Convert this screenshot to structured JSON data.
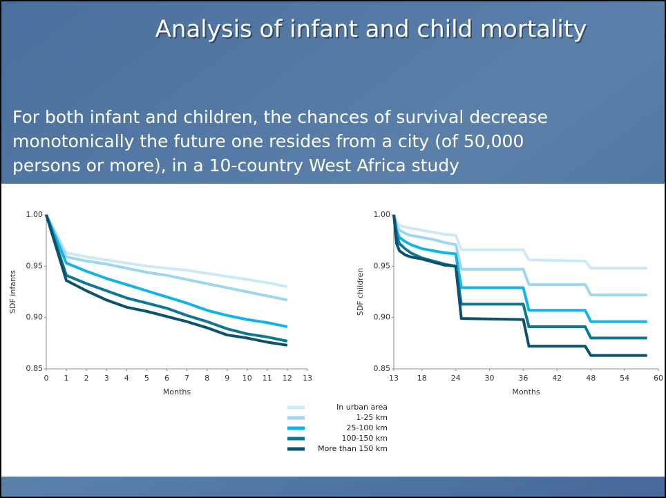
{
  "title": "Analysis of infant and child mortality",
  "body": [
    "For both infant and children, the chances of survival decrease",
    "monotonically the future one resides from a city (of 50,000",
    "persons or more), in a 10-country West Africa study"
  ],
  "legend": {
    "series": [
      {
        "name": "In urban area",
        "color": "#cde9f6"
      },
      {
        "name": "1-25 km",
        "color": "#9dd6f0"
      },
      {
        "name": "25-100 km",
        "color": "#13b3e8"
      },
      {
        "name": "100-150 km",
        "color": "#0f7696"
      },
      {
        "name": "More than 150 km",
        "color": "#0b526b"
      }
    ]
  },
  "chart_data": [
    {
      "type": "line",
      "xlabel": "Months",
      "ylabel": "SDF infants",
      "x": [
        0,
        1,
        2,
        3,
        4,
        5,
        6,
        7,
        8,
        9,
        10,
        11,
        12
      ],
      "xlim": [
        0,
        13
      ],
      "xticks": [
        0,
        1,
        2,
        3,
        4,
        5,
        6,
        7,
        8,
        9,
        10,
        11,
        12,
        13
      ],
      "ylim": [
        0.85,
        1
      ],
      "yticks": [
        0.85,
        {
          "value": 0.9,
          "label": "0.90"
        },
        0.95,
        {
          "value": 1,
          "label": "1.00"
        }
      ],
      "series": [
        {
          "values": [
            1,
            0.963,
            0.959,
            0.956,
            0.953,
            0.95,
            0.948,
            0.946,
            0.943,
            0.94,
            0.937,
            0.934,
            0.93
          ]
        },
        {
          "values": [
            1,
            0.959,
            0.955,
            0.952,
            0.948,
            0.944,
            0.941,
            0.937,
            0.933,
            0.929,
            0.925,
            0.921,
            0.917
          ]
        },
        {
          "values": [
            1,
            0.953,
            0.945,
            0.938,
            0.932,
            0.926,
            0.92,
            0.914,
            0.907,
            0.902,
            0.898,
            0.895,
            0.891
          ]
        },
        {
          "values": [
            1,
            0.941,
            0.933,
            0.926,
            0.919,
            0.914,
            0.909,
            0.902,
            0.896,
            0.889,
            0.884,
            0.881,
            0.877
          ]
        },
        {
          "values": [
            1,
            0.936,
            0.926,
            0.917,
            0.91,
            0.906,
            0.901,
            0.896,
            0.89,
            0.883,
            0.88,
            0.876,
            0.873
          ]
        }
      ]
    },
    {
      "type": "line",
      "xlabel": "Months",
      "ylabel": "SDF children",
      "x": [
        13,
        13.5,
        14,
        15,
        16,
        18,
        20,
        22,
        24,
        25,
        36,
        37,
        47,
        48,
        58
      ],
      "xlim": [
        13,
        60
      ],
      "xticks": [
        13,
        18,
        24,
        30,
        36,
        42,
        48,
        54,
        60
      ],
      "ylim": [
        0.85,
        1
      ],
      "yticks": [
        0.85,
        {
          "value": 0.9,
          "label": "0.90"
        },
        0.95,
        {
          "value": 1,
          "label": "1.00"
        }
      ],
      "series": [
        {
          "values": [
            1,
            0.993,
            0.99,
            0.988,
            0.987,
            0.985,
            0.983,
            0.981,
            0.98,
            0.966,
            0.966,
            0.956,
            0.955,
            0.948,
            0.948
          ]
        },
        {
          "values": [
            1,
            0.99,
            0.985,
            0.982,
            0.98,
            0.978,
            0.976,
            0.973,
            0.971,
            0.947,
            0.947,
            0.932,
            0.932,
            0.922,
            0.922
          ]
        },
        {
          "values": [
            1,
            0.985,
            0.978,
            0.974,
            0.971,
            0.967,
            0.965,
            0.963,
            0.962,
            0.929,
            0.929,
            0.907,
            0.907,
            0.896,
            0.896
          ]
        },
        {
          "values": [
            1,
            0.98,
            0.972,
            0.967,
            0.963,
            0.958,
            0.955,
            0.952,
            0.95,
            0.913,
            0.913,
            0.891,
            0.891,
            0.88,
            0.88
          ]
        },
        {
          "values": [
            1,
            0.972,
            0.965,
            0.961,
            0.959,
            0.957,
            0.954,
            0.951,
            0.95,
            0.899,
            0.898,
            0.872,
            0.872,
            0.863,
            0.863
          ]
        }
      ]
    }
  ]
}
